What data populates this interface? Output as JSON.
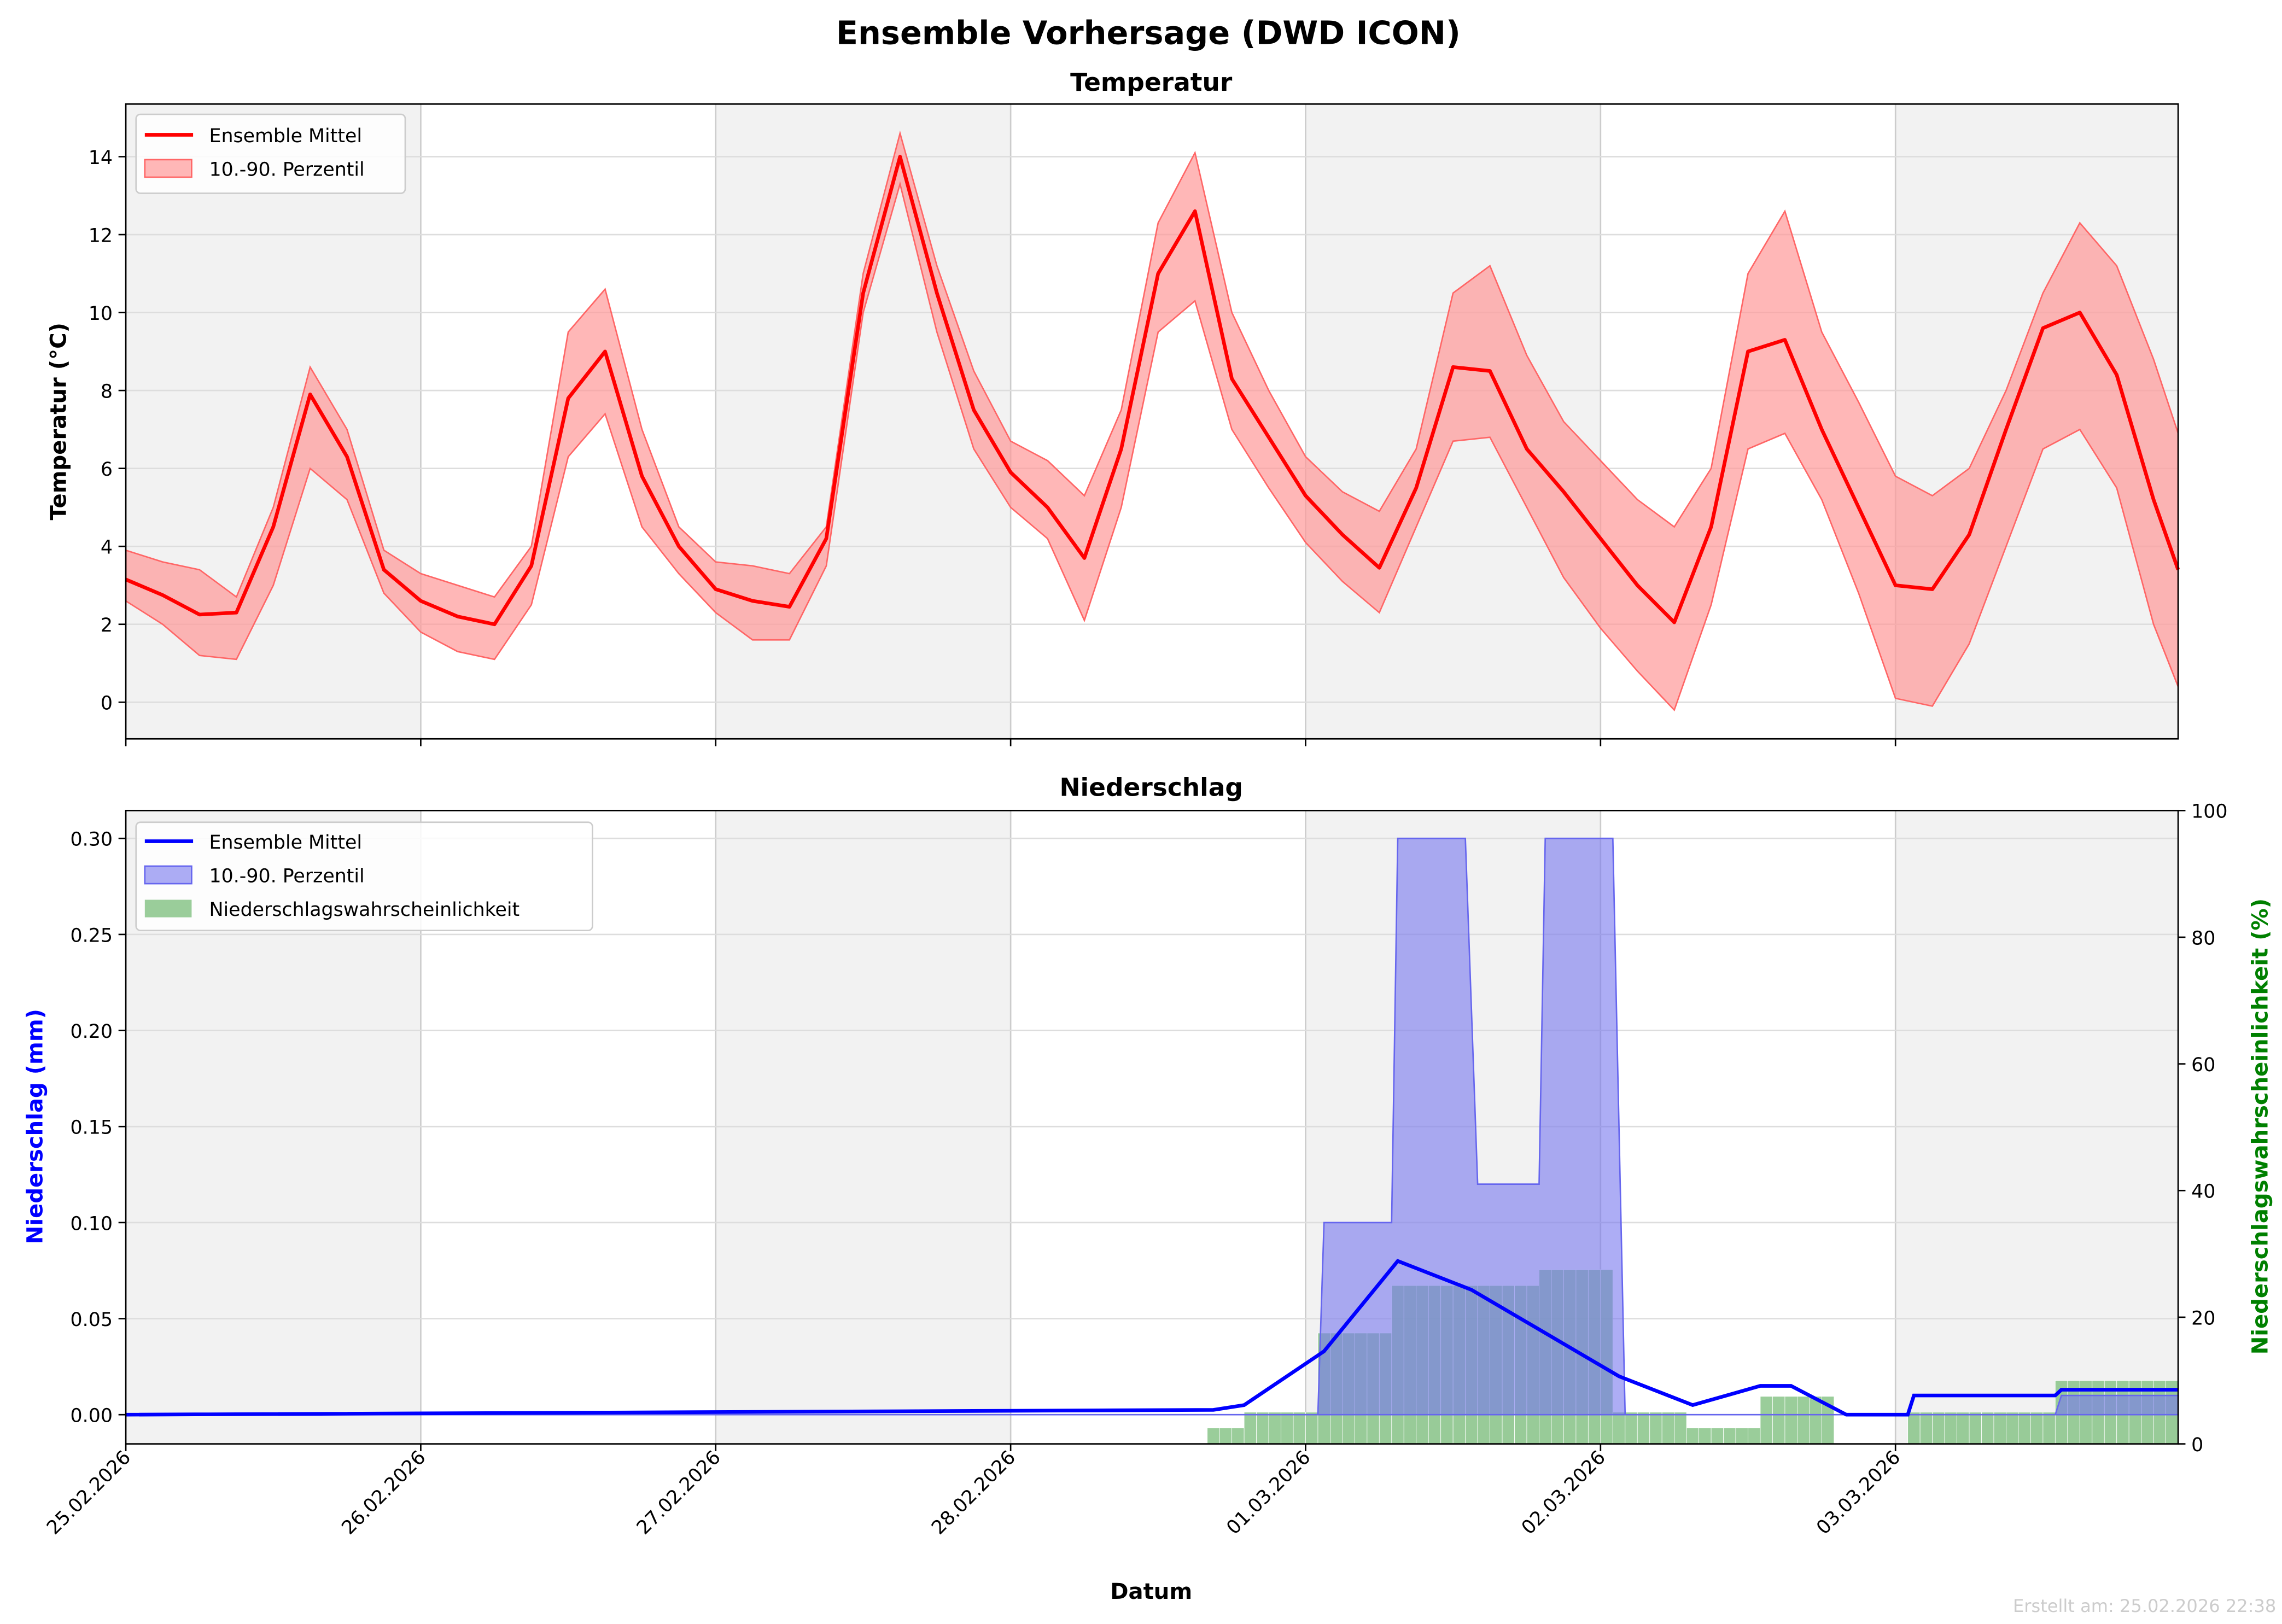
{
  "suptitle": "Ensemble Vorhersage (DWD ICON)",
  "footer": "Erstellt am: 25.02.2026 22:38",
  "colors": {
    "temp": "#ff0000",
    "temp_band": "#ff9999",
    "precip": "#0000ff",
    "precip_band": "#7777ee",
    "prob": "#88c488",
    "prob_axis": "#008000",
    "shade": "#f2f2f2"
  },
  "chart_data": [
    {
      "type": "line",
      "title": "Temperatur",
      "xlabel": "",
      "ylabel": "Temperatur (°C)",
      "x_unit": "hours since 25.02.2026 00:00",
      "xlim": [
        0,
        167
      ],
      "ylim": [
        -0.94,
        15.35
      ],
      "yticks": [
        0,
        2,
        4,
        6,
        8,
        10,
        12,
        14
      ],
      "grid": true,
      "legend": {
        "placement": "top-left",
        "entries": [
          "Ensemble Mittel",
          "10.-90. Perzentil"
        ]
      },
      "x": [
        0,
        3,
        6,
        9,
        12,
        15,
        18,
        21,
        24,
        27,
        30,
        33,
        36,
        39,
        42,
        45,
        48,
        51,
        54,
        57,
        60,
        63,
        66,
        69,
        72,
        75,
        78,
        81,
        84,
        87,
        90,
        93,
        96,
        99,
        102,
        105,
        108,
        111,
        114,
        117,
        120,
        123,
        126,
        129,
        132,
        135,
        138,
        141,
        144,
        147,
        150,
        153,
        156,
        159,
        162,
        165,
        167
      ],
      "series": [
        {
          "name": "Ensemble Mittel",
          "values": [
            3.15,
            2.75,
            2.25,
            2.3,
            4.5,
            7.9,
            6.3,
            3.4,
            2.6,
            2.2,
            2.0,
            3.5,
            7.8,
            9.0,
            5.8,
            4.0,
            2.9,
            2.6,
            2.45,
            4.2,
            10.5,
            14.0,
            10.5,
            7.5,
            5.9,
            5.0,
            3.7,
            6.5,
            11.0,
            12.6,
            8.3,
            6.8,
            5.3,
            4.3,
            3.45,
            5.5,
            8.6,
            8.5,
            6.5,
            5.4,
            4.2,
            3.0,
            2.05,
            4.5,
            9.0,
            9.3,
            7.0,
            5.0,
            3.0,
            2.9,
            4.3,
            7.0,
            9.6,
            10.0,
            8.4,
            5.2,
            3.4
          ]
        },
        {
          "name": "10. Perzentil",
          "values": [
            2.6,
            2.0,
            1.2,
            1.1,
            3.0,
            6.0,
            5.2,
            2.8,
            1.8,
            1.3,
            1.1,
            2.5,
            6.3,
            7.4,
            4.5,
            3.3,
            2.3,
            1.6,
            1.6,
            3.5,
            10.0,
            13.3,
            9.5,
            6.5,
            5.0,
            4.2,
            2.1,
            5.0,
            9.5,
            10.3,
            7.0,
            5.5,
            4.1,
            3.1,
            2.3,
            4.5,
            6.7,
            6.8,
            5.0,
            3.2,
            1.9,
            0.8,
            -0.2,
            2.5,
            6.5,
            6.9,
            5.2,
            2.8,
            0.1,
            -0.1,
            1.5,
            4.0,
            6.5,
            7.0,
            5.5,
            2.0,
            0.4
          ]
        },
        {
          "name": "90. Perzentil",
          "values": [
            3.9,
            3.6,
            3.4,
            2.7,
            5.0,
            8.6,
            7.0,
            3.9,
            3.3,
            3.0,
            2.7,
            4.0,
            9.5,
            10.6,
            7.0,
            4.5,
            3.6,
            3.5,
            3.3,
            4.5,
            11.0,
            14.6,
            11.2,
            8.5,
            6.7,
            6.2,
            5.3,
            7.5,
            12.3,
            14.1,
            10.0,
            8.0,
            6.3,
            5.4,
            4.9,
            6.5,
            10.5,
            11.2,
            8.9,
            7.2,
            6.2,
            5.2,
            4.5,
            6.0,
            11.0,
            12.6,
            9.5,
            7.7,
            5.8,
            5.3,
            6.0,
            8.0,
            10.5,
            12.3,
            11.2,
            8.8,
            6.9
          ]
        }
      ]
    },
    {
      "type": "line",
      "title": "Niederschlag",
      "xlabel": "Datum",
      "ylabel": "Niederschlag (mm)",
      "y2label": "Niederschlagswahrscheinlichkeit (%)",
      "x_unit": "hours since 25.02.2026 00:00",
      "xlim": [
        0,
        167
      ],
      "ylim": [
        -0.0152,
        0.3145
      ],
      "y2lim": [
        0,
        100
      ],
      "yticks": [
        "0.00",
        "0.05",
        "0.10",
        "0.15",
        "0.20",
        "0.25",
        "0.30"
      ],
      "y2ticks": [
        0,
        20,
        40,
        60,
        80,
        100
      ],
      "xticks": [
        "25.02.2026",
        "26.02.2026",
        "27.02.2026",
        "28.02.2026",
        "01.03.2026",
        "02.03.2026",
        "03.03.2026"
      ],
      "grid": true,
      "legend": {
        "placement": "top-left",
        "entries": [
          "Ensemble Mittel",
          "10.-90. Perzentil",
          "Niederschlagswahrscheinlichkeit"
        ]
      },
      "mean_steps": [
        [
          0,
          0
        ],
        [
          88.5,
          0.0025
        ],
        [
          91,
          0.005
        ],
        [
          97.5,
          0.033
        ],
        [
          103.5,
          0.08
        ],
        [
          109.5,
          0.065
        ],
        [
          121.5,
          0.02
        ],
        [
          127.5,
          0.005
        ],
        [
          133,
          0.015
        ],
        [
          135.5,
          0.015
        ],
        [
          140,
          0
        ],
        [
          145,
          0
        ],
        [
          145.5,
          0.01
        ],
        [
          157,
          0.01
        ],
        [
          157.5,
          0.013
        ],
        [
          167,
          0.013
        ]
      ],
      "p10_steps": [
        [
          0,
          0
        ],
        [
          157,
          0
        ],
        [
          157.5,
          0.01
        ],
        [
          167,
          0.01
        ]
      ],
      "p90_steps": [
        [
          0,
          0
        ],
        [
          97,
          0
        ],
        [
          97.5,
          0.1
        ],
        [
          103,
          0.1
        ],
        [
          103.5,
          0.3
        ],
        [
          109,
          0.3
        ],
        [
          110,
          0.12
        ],
        [
          115,
          0.12
        ],
        [
          115.5,
          0.3
        ],
        [
          121,
          0.3
        ],
        [
          122,
          0
        ],
        [
          167,
          0
        ]
      ],
      "probability_bars": [
        {
          "from": 88,
          "to": 91,
          "value": 2.5
        },
        {
          "from": 91,
          "to": 97,
          "value": 5
        },
        {
          "from": 97,
          "to": 103,
          "value": 17.5
        },
        {
          "from": 103,
          "to": 115,
          "value": 25
        },
        {
          "from": 115,
          "to": 121,
          "value": 27.5
        },
        {
          "from": 121,
          "to": 127,
          "value": 5
        },
        {
          "from": 127,
          "to": 133,
          "value": 2.5
        },
        {
          "from": 133,
          "to": 139,
          "value": 7.5
        },
        {
          "from": 145,
          "to": 157,
          "value": 5
        },
        {
          "from": 157,
          "to": 167,
          "value": 10
        }
      ]
    }
  ]
}
